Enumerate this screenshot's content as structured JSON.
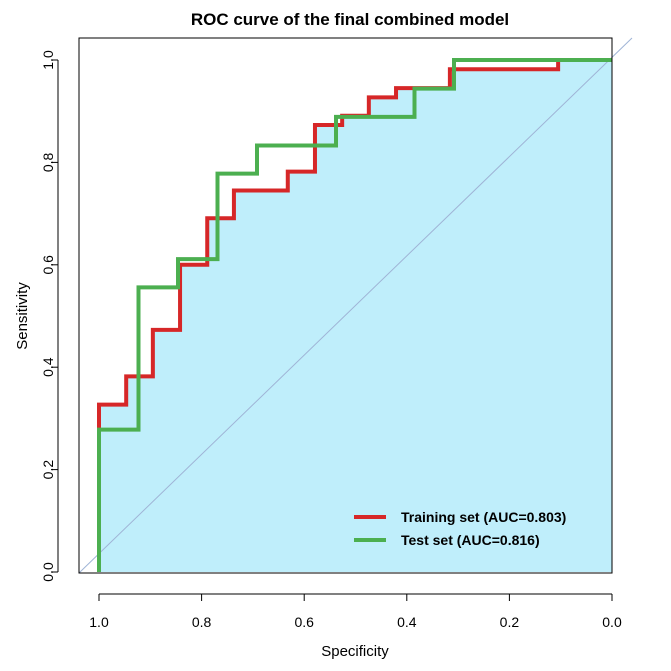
{
  "chart_data": {
    "type": "line",
    "title": "ROC curve of the final combined model",
    "xlabel": "Specificity",
    "ylabel": "Sensitivity",
    "xlim": [
      1.0,
      0.0
    ],
    "ylim": [
      0.0,
      1.0
    ],
    "x_ticks": [
      "1.0",
      "0.8",
      "0.6",
      "0.4",
      "0.2",
      "0.0"
    ],
    "x_tick_values": [
      1.0,
      0.8,
      0.6,
      0.4,
      0.2,
      0.0
    ],
    "y_ticks": [
      "0.0",
      "0.2",
      "0.4",
      "0.6",
      "0.8",
      "1.0"
    ],
    "y_tick_values": [
      0.0,
      0.2,
      0.4,
      0.6,
      0.8,
      1.0
    ],
    "legend_position": "bottom-right",
    "fill_color": "#bfeefb",
    "diagonal_color": "#9fb4d6",
    "series": [
      {
        "name": "Training set (AUC=0.803)",
        "color": "#d62728",
        "points": [
          [
            1.0,
            0.0
          ],
          [
            1.0,
            0.327
          ],
          [
            0.947,
            0.327
          ],
          [
            0.947,
            0.382
          ],
          [
            0.895,
            0.382
          ],
          [
            0.895,
            0.473
          ],
          [
            0.842,
            0.473
          ],
          [
            0.842,
            0.6
          ],
          [
            0.789,
            0.6
          ],
          [
            0.789,
            0.691
          ],
          [
            0.737,
            0.691
          ],
          [
            0.737,
            0.745
          ],
          [
            0.632,
            0.745
          ],
          [
            0.632,
            0.782
          ],
          [
            0.579,
            0.782
          ],
          [
            0.579,
            0.873
          ],
          [
            0.526,
            0.873
          ],
          [
            0.526,
            0.891
          ],
          [
            0.474,
            0.891
          ],
          [
            0.474,
            0.927
          ],
          [
            0.421,
            0.927
          ],
          [
            0.421,
            0.945
          ],
          [
            0.316,
            0.945
          ],
          [
            0.316,
            0.982
          ],
          [
            0.105,
            0.982
          ],
          [
            0.105,
            1.0
          ],
          [
            0.0,
            1.0
          ]
        ]
      },
      {
        "name": "Test set (AUC=0.816)",
        "color": "#4caf50",
        "points": [
          [
            1.0,
            0.0
          ],
          [
            1.0,
            0.278
          ],
          [
            0.923,
            0.278
          ],
          [
            0.923,
            0.556
          ],
          [
            0.846,
            0.556
          ],
          [
            0.846,
            0.611
          ],
          [
            0.769,
            0.611
          ],
          [
            0.769,
            0.778
          ],
          [
            0.692,
            0.778
          ],
          [
            0.692,
            0.833
          ],
          [
            0.538,
            0.833
          ],
          [
            0.538,
            0.889
          ],
          [
            0.385,
            0.889
          ],
          [
            0.385,
            0.944
          ],
          [
            0.308,
            0.944
          ],
          [
            0.308,
            1.0
          ],
          [
            0.0,
            1.0
          ]
        ]
      }
    ]
  }
}
